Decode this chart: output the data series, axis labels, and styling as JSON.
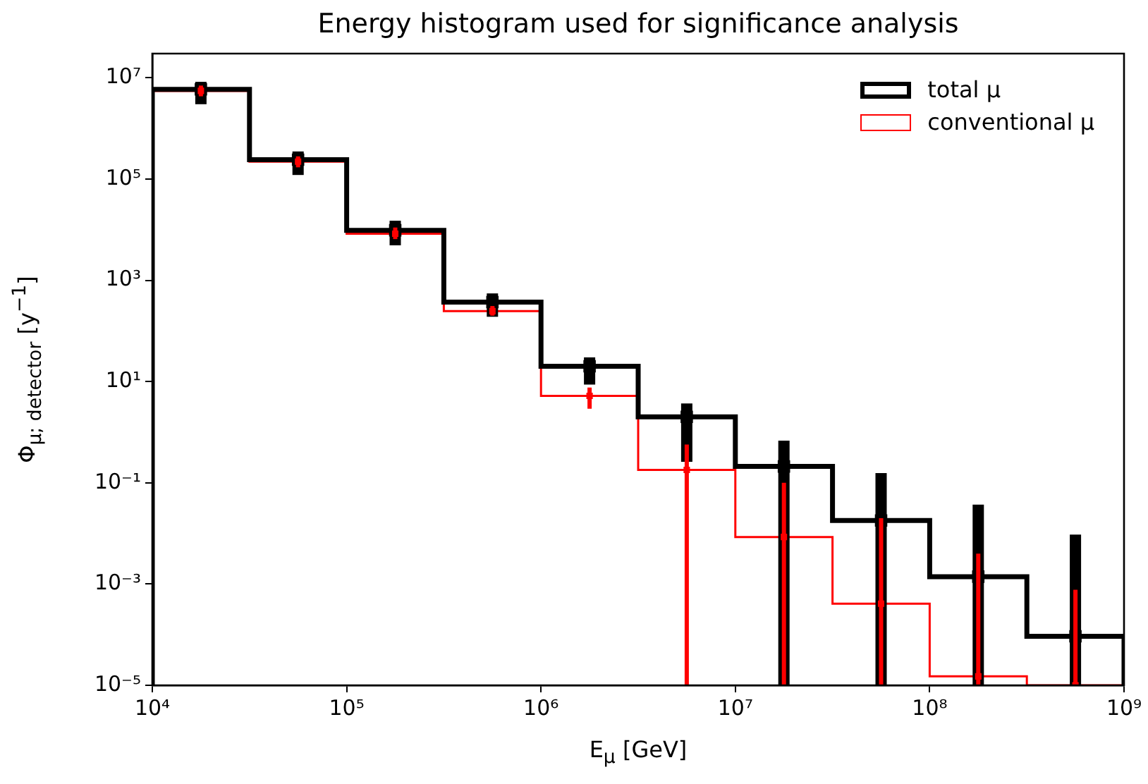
{
  "chart_data": {
    "type": "histogram",
    "title": "Energy histogram used for significance analysis",
    "xlabel": "E$_{μ}$ [GeV]",
    "ylabel": "Φ$_{μ; detector}$ [y$^{−1}$]",
    "bins": [
      10000,
      31623,
      100000,
      316228,
      1000000,
      3162278,
      10000000,
      31622777,
      100000000,
      316227766,
      1000000000
    ],
    "series": [
      {
        "name": "total μ",
        "color": "#000000",
        "values": [
          5900000,
          240000,
          9700,
          370,
          20,
          2.0,
          0.21,
          0.018,
          0.0014,
          9.3e-05
        ]
      },
      {
        "name": "conventional μ",
        "color": "#ff0000",
        "values": [
          5500000,
          220000,
          8300,
          245,
          5.2,
          0.18,
          0.0085,
          0.00041,
          1.5e-05,
          null
        ]
      },
      {
        "type": "scatter",
        "color": "#000000",
        "marker": "square",
        "x": [
          17783,
          56234,
          177828,
          562341,
          1778279,
          5623413,
          17782794,
          56234133,
          177827941,
          562341325
        ],
        "values": [
          5900000,
          240000,
          9700,
          370,
          20,
          2.0,
          0.21,
          0.018,
          0.0014,
          9.3e-05
        ],
        "errors": [
          [
            3000000,
            8300000
          ],
          [
            120000,
            350000
          ],
          [
            4900,
            15000
          ],
          [
            190,
            550
          ],
          [
            8.7,
            30
          ],
          [
            0.26,
            3.7
          ],
          [
            1e-05,
            0.68
          ],
          [
            1e-05,
            0.155
          ],
          [
            1e-05,
            0.037
          ],
          [
            1e-05,
            0.0095
          ]
        ]
      },
      {
        "type": "scatter",
        "color": "#ff0000",
        "marker": "square",
        "x": [
          17783,
          56234,
          177828,
          562341,
          1778279,
          5623413,
          17782794,
          56234133,
          177827941,
          562341325
        ],
        "values": [
          5500000,
          220000,
          8300,
          245,
          5.2,
          0.18,
          0.0085,
          0.00041,
          1.5e-05,
          1e-05
        ],
        "errors": [
          [
            4300000,
            7000000
          ],
          [
            170000,
            280000
          ],
          [
            6500,
            11000
          ],
          [
            200,
            310
          ],
          [
            2.9,
            7.6
          ],
          [
            1e-05,
            0.57
          ],
          [
            1e-05,
            0.1
          ],
          [
            1e-05,
            0.02
          ],
          [
            1e-05,
            0.004
          ],
          [
            1e-05,
            0.00077
          ]
        ]
      }
    ],
    "xlim": [
      10000,
      1000000000
    ],
    "ylim": [
      1e-05,
      30000000
    ],
    "xticks": [
      {
        "value": 10000,
        "label": "10⁴"
      },
      {
        "value": 100000,
        "label": "10⁵"
      },
      {
        "value": 1000000,
        "label": "10⁶"
      },
      {
        "value": 10000000,
        "label": "10⁷"
      },
      {
        "value": 100000000,
        "label": "10⁸"
      },
      {
        "value": 1000000000,
        "label": "10⁹"
      }
    ],
    "yticks": [
      {
        "value": 1e-05,
        "label": "10⁻⁵"
      },
      {
        "value": 0.001,
        "label": "10⁻³"
      },
      {
        "value": 0.1,
        "label": "10⁻¹"
      },
      {
        "value": 10,
        "label": "10¹"
      },
      {
        "value": 1000,
        "label": "10³"
      },
      {
        "value": 100000,
        "label": "10⁵"
      },
      {
        "value": 10000000,
        "label": "10⁷"
      }
    ],
    "log": "xy",
    "legend": "top right",
    "grid": false
  }
}
